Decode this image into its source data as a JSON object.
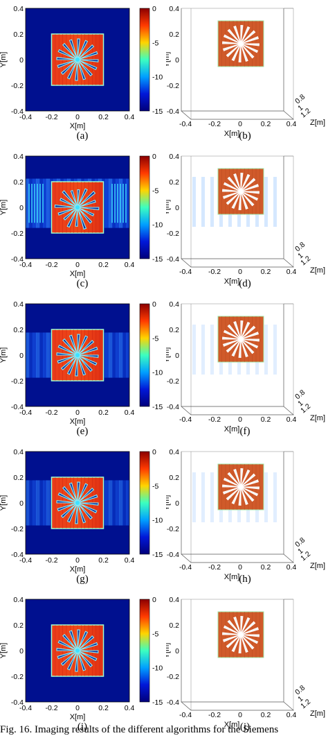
{
  "panels_2d": [
    {
      "label": "(a)",
      "clutter": 0,
      "distort": 0
    },
    {
      "label": "(c)",
      "clutter": 3,
      "distort": 1
    },
    {
      "label": "(e)",
      "clutter": 2,
      "distort": 0
    },
    {
      "label": "(g)",
      "clutter": 1,
      "distort": 0
    },
    {
      "label": "(i)",
      "clutter": 0,
      "distort": 0
    }
  ],
  "panels_3d": [
    {
      "label": "(b)",
      "clutter": 0
    },
    {
      "label": "(d)",
      "clutter": 2
    },
    {
      "label": "(f)",
      "clutter": 1
    },
    {
      "label": "(h)",
      "clutter": 1
    },
    {
      "label": "(j)",
      "clutter": 0
    }
  ],
  "axes_2d": {
    "xlabel": "X[m]",
    "ylabel": "Y[m]",
    "xticks": [
      "-0.4",
      "-0.2",
      "0",
      "0.2",
      "0.4"
    ],
    "yticks": [
      "0.4",
      "0.2",
      "0",
      "-0.2",
      "-0.4"
    ]
  },
  "colorbar": {
    "ticks": [
      "0",
      "-5",
      "-10",
      "-15"
    ],
    "colors": [
      "#8b0000",
      "#ff3a00",
      "#ffd400",
      "#3cffc0",
      "#00a0ff",
      "#0018d8",
      "#00007a"
    ]
  },
  "axes_3d": {
    "xlabel": "X[m]",
    "ylabel": "Y[m]",
    "zlabel": "Z[m]",
    "xticks": [
      "-0.2",
      "0",
      "0.2",
      "0.4"
    ],
    "yticks": [
      "0.4",
      "0.2",
      "0",
      "-0.2",
      "-0.4"
    ],
    "zticks": [
      "0.8",
      "1",
      "1.2"
    ],
    "x_first_tick": "-0.4"
  },
  "caption": "Fig. 16.    Imaging results of the different algorithms for the Siemens"
}
